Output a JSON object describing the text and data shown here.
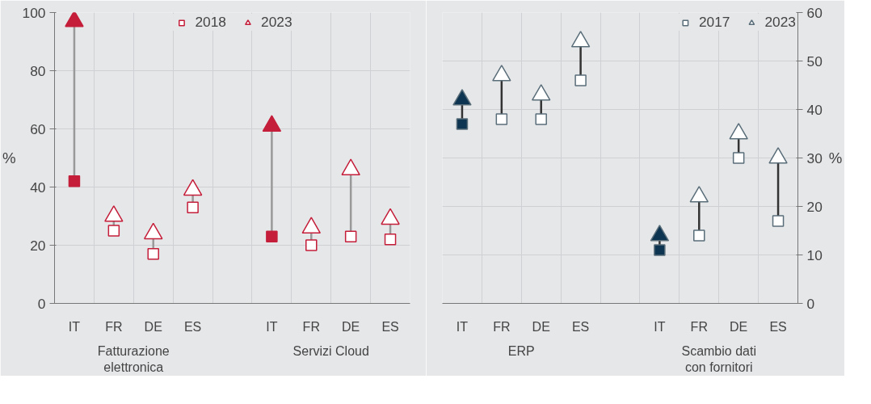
{
  "chart_data": [
    {
      "type": "scatter",
      "ylabel": "%",
      "ylim": [
        0,
        100
      ],
      "yticks": [
        0,
        20,
        40,
        60,
        80,
        100
      ],
      "grid": true,
      "legend": "top",
      "categories": [
        "IT",
        "FR",
        "DE",
        "ES",
        null,
        "IT",
        "FR",
        "DE",
        "ES"
      ],
      "annotations": [
        "Fatturazione elettronica",
        "Servizi Cloud"
      ],
      "series": [
        {
          "name": "2018",
          "marker": "square",
          "color": "#c41e3a",
          "colors": [
            "#c41e3a",
            "#ffffff",
            "#ffffff",
            "#ffffff",
            null,
            "#c41e3a",
            "#ffffff",
            "#ffffff",
            "#ffffff"
          ],
          "values": [
            42,
            25,
            17,
            33,
            null,
            23,
            20,
            23,
            22
          ]
        },
        {
          "name": "2023",
          "marker": "triangle",
          "color": "#c41e3a",
          "colors": [
            "#c41e3a",
            "#ffffff",
            "#ffffff",
            "#ffffff",
            null,
            "#c41e3a",
            "#ffffff",
            "#ffffff",
            "#ffffff"
          ],
          "values": [
            97,
            30,
            24,
            39,
            null,
            61,
            26,
            46,
            29
          ]
        }
      ]
    },
    {
      "type": "scatter",
      "y2label": "%",
      "y2lim": [
        0,
        60
      ],
      "y2ticks": [
        0,
        10,
        20,
        30,
        40,
        50,
        60
      ],
      "grid": true,
      "legend": "top right",
      "categories": [
        "IT",
        "FR",
        "DE",
        "ES",
        null,
        "IT",
        "FR",
        "DE",
        "ES"
      ],
      "annotations": [
        "ERP",
        "Scambio dati con fornitori"
      ],
      "series": [
        {
          "name": "2017",
          "axis": "y2",
          "marker": "square",
          "color": "#5a6e7a",
          "colors": [
            "#0d3450",
            "#ffffff",
            "#ffffff",
            "#ffffff",
            null,
            "#0d3450",
            "#ffffff",
            "#ffffff",
            "#ffffff"
          ],
          "values": [
            37,
            38,
            38,
            46,
            null,
            11,
            14,
            30,
            17
          ]
        },
        {
          "name": "2023",
          "axis": "y2",
          "marker": "triangle",
          "color": "#5a6e7a",
          "colors": [
            "#0d3450",
            "#ffffff",
            "#ffffff",
            "#ffffff",
            null,
            "#0d3450",
            "#ffffff",
            "#ffffff",
            "#ffffff"
          ],
          "values": [
            42,
            47,
            43,
            54,
            null,
            14,
            22,
            35,
            30
          ]
        }
      ]
    }
  ]
}
